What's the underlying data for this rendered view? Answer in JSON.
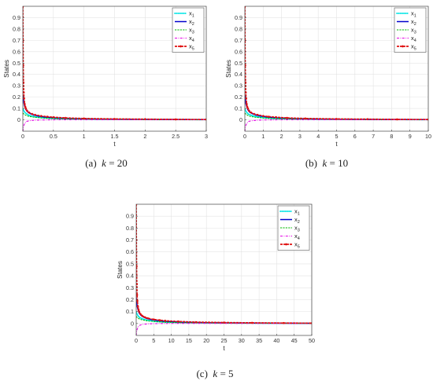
{
  "chart_data": [
    {
      "id": "a",
      "type": "line",
      "caption": {
        "label": "(a)",
        "var": "k",
        "eq": " = 20"
      },
      "xlabel": "t",
      "ylabel": "States",
      "xlim": [
        0,
        3
      ],
      "ylim": [
        -0.1,
        1.0
      ],
      "xticks": [
        0,
        0.5,
        1,
        1.5,
        2,
        2.5,
        3
      ],
      "xtick_labels": [
        "0",
        "0.5",
        "1",
        "1.5",
        "2",
        "2.5",
        "3"
      ],
      "yticks": [
        0,
        0.1,
        0.2,
        0.3,
        0.4,
        0.5,
        0.6,
        0.7,
        0.8,
        0.9
      ],
      "ytick_labels": [
        "0",
        "0.1",
        "0.2",
        "0.3",
        "0.4",
        "0.5",
        "0.6",
        "0.7",
        "0.8",
        "0.9"
      ],
      "grid": true,
      "legend": "top-right",
      "series": [
        {
          "name": "x1",
          "color": "#00e5e5",
          "style": "dots",
          "x": [
            0,
            0.01,
            0.02,
            0.04,
            0.07,
            0.1,
            0.15,
            0.2,
            0.3,
            0.5,
            0.8,
            1.2,
            1.8,
            2.5,
            3
          ],
          "y": [
            0.1,
            0.085,
            0.075,
            0.062,
            0.05,
            0.04,
            0.032,
            0.026,
            0.019,
            0.012,
            0.008,
            0.005,
            0.003,
            0.002,
            0.0015
          ]
        },
        {
          "name": "x2",
          "color": "#0000cc",
          "style": "solid",
          "x": [
            0,
            0.005,
            0.01,
            0.02,
            0.03,
            0.05,
            0.08,
            0.12,
            0.18,
            0.25,
            0.35,
            0.5,
            0.8,
            1.2,
            1.8,
            2.5,
            3
          ],
          "y": [
            0.2,
            0.21,
            0.18,
            0.14,
            0.12,
            0.09,
            0.07,
            0.055,
            0.042,
            0.033,
            0.025,
            0.018,
            0.011,
            0.007,
            0.004,
            0.003,
            0.002
          ]
        },
        {
          "name": "x3",
          "color": "#00bb00",
          "style": "dash",
          "x": [
            0,
            0.02,
            0.05,
            0.1,
            0.2,
            0.35,
            0.5,
            0.8,
            1.2,
            1.8,
            2.5,
            3
          ],
          "y": [
            0.06,
            0.05,
            0.04,
            0.03,
            0.022,
            0.015,
            0.011,
            0.007,
            0.005,
            0.003,
            0.002,
            0.0015
          ]
        },
        {
          "name": "x4",
          "color": "#e600e6",
          "style": "dashdot",
          "x": [
            0,
            0.01,
            0.03,
            0.06,
            0.1,
            0.2,
            0.4,
            0.8,
            1.5,
            3
          ],
          "y": [
            -0.1,
            -0.06,
            -0.03,
            -0.015,
            -0.008,
            -0.003,
            0.0,
            0.001,
            0.001,
            0.001
          ]
        },
        {
          "name": "x5",
          "color": "#e01010",
          "style": "marker-line",
          "x": [
            0,
            0.003,
            0.006,
            0.01,
            0.015,
            0.02,
            0.03,
            0.04,
            0.05,
            0.07,
            0.1,
            0.15,
            0.2,
            0.3,
            0.4,
            0.5,
            0.7,
            1,
            1.5,
            2,
            2.5,
            3
          ],
          "y": [
            1.0,
            0.7,
            0.48,
            0.33,
            0.24,
            0.19,
            0.14,
            0.115,
            0.1,
            0.08,
            0.065,
            0.052,
            0.044,
            0.034,
            0.028,
            0.023,
            0.017,
            0.012,
            0.008,
            0.006,
            0.004,
            0.003
          ]
        }
      ]
    },
    {
      "id": "b",
      "type": "line",
      "caption": {
        "label": "(b)",
        "var": "k",
        "eq": " = 10"
      },
      "xlabel": "t",
      "ylabel": "States",
      "xlim": [
        0,
        10
      ],
      "ylim": [
        -0.1,
        1.0
      ],
      "xticks": [
        0,
        1,
        2,
        3,
        4,
        5,
        6,
        7,
        8,
        9,
        10
      ],
      "xtick_labels": [
        "0",
        "1",
        "2",
        "3",
        "4",
        "5",
        "6",
        "7",
        "8",
        "9",
        "10"
      ],
      "yticks": [
        0,
        0.1,
        0.2,
        0.3,
        0.4,
        0.5,
        0.6,
        0.7,
        0.8,
        0.9
      ],
      "ytick_labels": [
        "0",
        "0.1",
        "0.2",
        "0.3",
        "0.4",
        "0.5",
        "0.6",
        "0.7",
        "0.8",
        "0.9"
      ],
      "grid": true,
      "legend": "top-right",
      "series": [
        {
          "name": "x1",
          "color": "#00e5e5",
          "style": "dots",
          "x": [
            0,
            0.03,
            0.06,
            0.12,
            0.2,
            0.35,
            0.5,
            0.7,
            1,
            1.5,
            2.5,
            4,
            6,
            8,
            10
          ],
          "y": [
            0.1,
            0.085,
            0.075,
            0.062,
            0.05,
            0.04,
            0.032,
            0.026,
            0.019,
            0.012,
            0.008,
            0.005,
            0.003,
            0.002,
            0.0015
          ]
        },
        {
          "name": "x2",
          "color": "#0000cc",
          "style": "solid",
          "x": [
            0,
            0.015,
            0.03,
            0.06,
            0.1,
            0.16,
            0.25,
            0.4,
            0.6,
            0.85,
            1.2,
            1.7,
            2.7,
            4,
            6,
            8,
            10
          ],
          "y": [
            0.2,
            0.21,
            0.18,
            0.14,
            0.12,
            0.09,
            0.07,
            0.055,
            0.042,
            0.033,
            0.025,
            0.018,
            0.011,
            0.007,
            0.004,
            0.003,
            0.002
          ]
        },
        {
          "name": "x3",
          "color": "#00bb00",
          "style": "dash",
          "x": [
            0,
            0.06,
            0.15,
            0.3,
            0.6,
            1.1,
            1.7,
            2.7,
            4,
            6,
            8,
            10
          ],
          "y": [
            0.06,
            0.05,
            0.04,
            0.03,
            0.022,
            0.015,
            0.011,
            0.007,
            0.005,
            0.003,
            0.002,
            0.0015
          ]
        },
        {
          "name": "x4",
          "color": "#e600e6",
          "style": "dashdot",
          "x": [
            0,
            0.03,
            0.1,
            0.2,
            0.35,
            0.7,
            1.3,
            2.7,
            5,
            10
          ],
          "y": [
            -0.1,
            -0.06,
            -0.03,
            -0.015,
            -0.008,
            -0.003,
            0.0,
            0.001,
            0.001,
            0.001
          ]
        },
        {
          "name": "x5",
          "color": "#e01010",
          "style": "marker-line",
          "x": [
            0,
            0.01,
            0.02,
            0.035,
            0.05,
            0.07,
            0.1,
            0.13,
            0.17,
            0.23,
            0.33,
            0.5,
            0.7,
            1,
            1.3,
            1.7,
            2.3,
            3.3,
            5,
            6.7,
            8.3,
            10
          ],
          "y": [
            1.0,
            0.7,
            0.48,
            0.33,
            0.24,
            0.19,
            0.14,
            0.115,
            0.1,
            0.08,
            0.065,
            0.052,
            0.044,
            0.034,
            0.028,
            0.023,
            0.017,
            0.012,
            0.008,
            0.006,
            0.004,
            0.003
          ]
        }
      ]
    },
    {
      "id": "c",
      "type": "line",
      "caption": {
        "label": "(c)",
        "var": "k",
        "eq": " = 5"
      },
      "xlabel": "t",
      "ylabel": "States",
      "xlim": [
        0,
        50
      ],
      "ylim": [
        -0.1,
        1.0
      ],
      "xticks": [
        0,
        5,
        10,
        15,
        20,
        25,
        30,
        35,
        40,
        45,
        50
      ],
      "xtick_labels": [
        "0",
        "5",
        "10",
        "15",
        "20",
        "25",
        "30",
        "35",
        "40",
        "45",
        "50"
      ],
      "yticks": [
        0,
        0.1,
        0.2,
        0.3,
        0.4,
        0.5,
        0.6,
        0.7,
        0.8,
        0.9
      ],
      "ytick_labels": [
        "0",
        "0.1",
        "0.2",
        "0.3",
        "0.4",
        "0.5",
        "0.6",
        "0.7",
        "0.8",
        "0.9"
      ],
      "grid": true,
      "legend": "top-right",
      "series": [
        {
          "name": "x1",
          "color": "#00e5e5",
          "style": "dots",
          "x": [
            0,
            0.15,
            0.3,
            0.6,
            1,
            1.7,
            2.5,
            3.5,
            5,
            8,
            13,
            20,
            30,
            40,
            50
          ],
          "y": [
            0.1,
            0.085,
            0.075,
            0.062,
            0.05,
            0.04,
            0.032,
            0.026,
            0.019,
            0.012,
            0.008,
            0.005,
            0.003,
            0.002,
            0.0015
          ]
        },
        {
          "name": "x2",
          "color": "#0000cc",
          "style": "solid",
          "x": [
            0,
            0.07,
            0.15,
            0.3,
            0.5,
            0.8,
            1.3,
            2,
            3,
            4.2,
            6,
            8.5,
            13,
            20,
            30,
            40,
            50
          ],
          "y": [
            0.2,
            0.21,
            0.18,
            0.14,
            0.12,
            0.09,
            0.07,
            0.055,
            0.042,
            0.033,
            0.025,
            0.018,
            0.011,
            0.007,
            0.004,
            0.003,
            0.002
          ]
        },
        {
          "name": "x3",
          "color": "#00bb00",
          "style": "dash",
          "x": [
            0,
            0.3,
            0.8,
            1.7,
            3.3,
            5.8,
            8.3,
            13,
            20,
            30,
            40,
            50
          ],
          "y": [
            0.06,
            0.05,
            0.04,
            0.03,
            0.022,
            0.015,
            0.011,
            0.007,
            0.005,
            0.003,
            0.002,
            0.0015
          ]
        },
        {
          "name": "x4",
          "color": "#e600e6",
          "style": "dashdot",
          "x": [
            0,
            0.15,
            0.5,
            1,
            1.7,
            3.3,
            6.7,
            13,
            25,
            50
          ],
          "y": [
            -0.1,
            -0.06,
            -0.03,
            -0.015,
            -0.008,
            -0.003,
            0.0,
            0.001,
            0.001,
            0.001
          ]
        },
        {
          "name": "x5",
          "color": "#e01010",
          "style": "marker-line",
          "x": [
            0,
            0.05,
            0.1,
            0.17,
            0.25,
            0.33,
            0.5,
            0.67,
            0.83,
            1.2,
            1.7,
            2.5,
            3.3,
            5,
            6.7,
            8.3,
            12,
            17,
            25,
            33,
            42,
            50
          ],
          "y": [
            1.0,
            0.7,
            0.48,
            0.33,
            0.24,
            0.19,
            0.14,
            0.115,
            0.1,
            0.08,
            0.065,
            0.052,
            0.044,
            0.034,
            0.028,
            0.023,
            0.017,
            0.012,
            0.008,
            0.006,
            0.004,
            0.003
          ]
        }
      ]
    }
  ]
}
